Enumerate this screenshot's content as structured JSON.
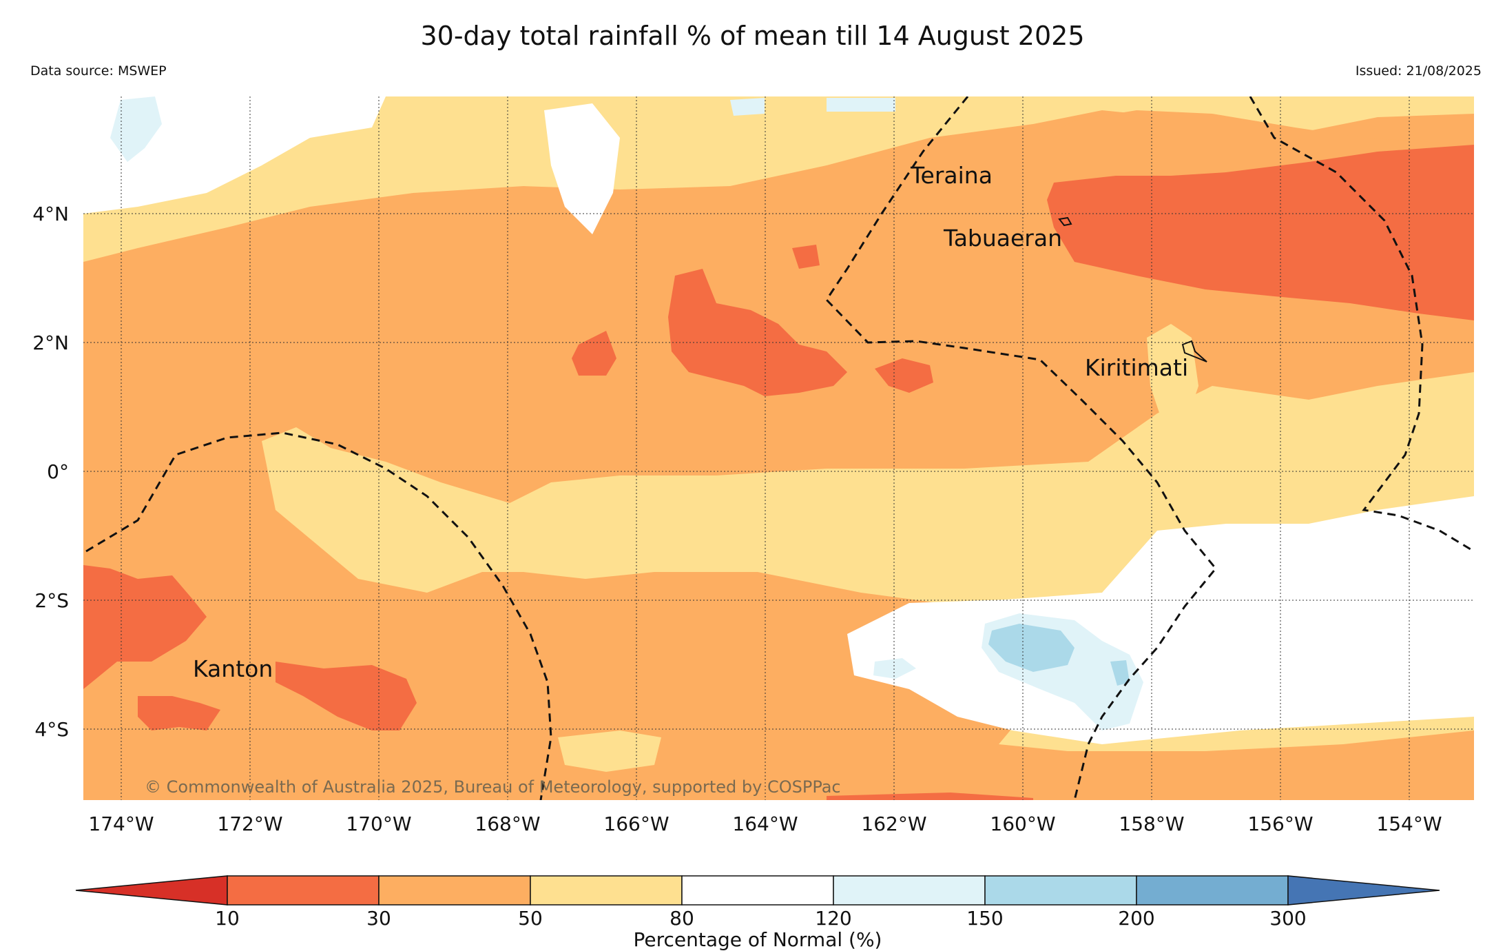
{
  "title": "30-day total rainfall % of mean till 14 August 2025",
  "data_source": "Data source: MSWEP",
  "issued": "Issued: 21/08/2025",
  "copyright": "© Commonwealth of Australia 2025, Bureau of Meteorology, supported by COSPPac",
  "map": {
    "lat_labels": [
      "4°N",
      "2°N",
      "0°",
      "2°S",
      "4°S"
    ],
    "lon_labels": [
      "174°W",
      "172°W",
      "170°W",
      "168°W",
      "166°W",
      "164°W",
      "162°W",
      "160°W",
      "158°W",
      "156°W",
      "154°W"
    ],
    "places": [
      "Teraina",
      "Tabuaeran",
      "Kiritimati",
      "Kanton"
    ]
  },
  "colorbar": {
    "title": "Percentage of Normal (%)",
    "ticks": [
      "10",
      "30",
      "50",
      "80",
      "120",
      "150",
      "200",
      "300"
    ],
    "colors": [
      "#d73027",
      "#f46d43",
      "#fdae61",
      "#fee090",
      "#ffffff",
      "#e0f3f8",
      "#abd9e9",
      "#74add1",
      "#4575b4"
    ]
  }
}
